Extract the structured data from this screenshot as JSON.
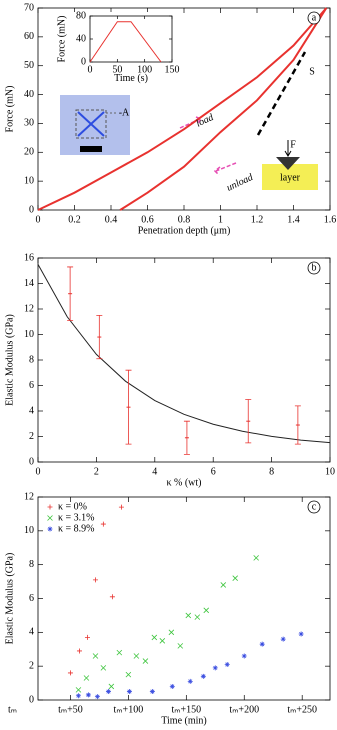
{
  "chart_data": [
    {
      "type": "line",
      "label": "a",
      "xlabel": "Penetration depth (μm)",
      "ylabel": "Force (mN)",
      "xlim": [
        0,
        1.6
      ],
      "xticks": [
        0,
        0.2,
        0.4,
        0.6,
        0.8,
        1,
        1.2,
        1.4,
        1.6
      ],
      "ylim": [
        0,
        70
      ],
      "yticks": [
        0,
        10,
        20,
        30,
        40,
        50,
        60,
        70
      ],
      "series": [
        {
          "color": "#e8322f",
          "x": [
            0,
            0.2,
            0.4,
            0.6,
            0.8,
            1.0,
            1.2,
            1.4,
            1.58
          ],
          "values": [
            0,
            6,
            13,
            20,
            28,
            37,
            46,
            57,
            70
          ]
        },
        {
          "color": "#e8322f",
          "x": [
            1.58,
            1.5,
            1.4,
            1.2,
            1.0,
            0.8,
            0.6,
            0.45
          ],
          "values": [
            70,
            62,
            52,
            38,
            27,
            15,
            6,
            0
          ]
        }
      ],
      "annotations": [
        "load",
        "unload",
        "S",
        "F",
        "layer",
        "-A"
      ],
      "inset": {
        "xlabel": "Time (s)",
        "ylabel": "Force (mN)",
        "xlim": [
          0,
          150
        ],
        "xticks": [
          0,
          50,
          100,
          150
        ],
        "ylim": [
          0,
          80
        ],
        "yticks": [
          0,
          40,
          80
        ],
        "color": "#e8322f",
        "x": [
          0,
          50,
          75,
          130
        ],
        "values": [
          0,
          70,
          70,
          0
        ]
      }
    },
    {
      "type": "errorbar",
      "label": "b",
      "xlabel": "κ % (wt)",
      "ylabel": "Elastic Modulus (GPa)",
      "xlim": [
        0,
        10
      ],
      "xticks": [
        0,
        2,
        4,
        6,
        8,
        10
      ],
      "ylim": [
        0,
        16
      ],
      "yticks": [
        0,
        2,
        4,
        6,
        8,
        10,
        12,
        14,
        16
      ],
      "color": "#e8322f",
      "x": [
        1.1,
        2.1,
        3.1,
        5.1,
        7.2,
        8.9
      ],
      "values": [
        13.2,
        9.8,
        4.3,
        1.9,
        3.2,
        2.9
      ],
      "errors": [
        2.1,
        1.7,
        2.9,
        1.3,
        1.7,
        1.5
      ],
      "fit": {
        "color": "#222222",
        "x": [
          0,
          1,
          2,
          3,
          4,
          5,
          6,
          7,
          8,
          9,
          10
        ],
        "values": [
          15.5,
          11.39,
          8.44,
          6.33,
          4.82,
          3.74,
          2.96,
          2.41,
          2.01,
          1.72,
          1.52
        ]
      }
    },
    {
      "type": "scatter",
      "label": "c",
      "xlabel": "Time (min)",
      "ylabel": "Elastic Modulus (GPa)",
      "legend": "top-left",
      "xlim": [
        22,
        274
      ],
      "xticks": [
        {
          "value": 0,
          "label": "tₘ"
        },
        {
          "value": 50,
          "label": "tₘ+50"
        },
        {
          "value": 100,
          "label": "tₘ+100"
        },
        {
          "value": 150,
          "label": "tₘ+150"
        },
        {
          "value": 200,
          "label": "tₘ+200"
        },
        {
          "value": 250,
          "label": "tₘ+250"
        }
      ],
      "ylim": [
        0,
        12
      ],
      "yticks": [
        0,
        2,
        4,
        6,
        8,
        10,
        12
      ],
      "series": [
        {
          "name": "κ = 0%",
          "color": "#e8322f",
          "marker": "+",
          "x": [
            50,
            57.8,
            64.7,
            71.6,
            78.4,
            86.2,
            94
          ],
          "values": [
            1.6,
            2.9,
            3.7,
            7.1,
            10.4,
            6.1,
            11.4
          ]
        },
        {
          "name": "κ = 3.1%",
          "color": "#3cc43c",
          "marker": "x",
          "x": [
            56.9,
            63.8,
            71.6,
            78.4,
            85.3,
            92.2,
            100,
            106.9,
            114.7,
            122.4,
            129.3,
            137.1,
            144.8,
            151.7,
            159.5,
            167.2,
            181.9,
            192.2,
            210.3
          ],
          "values": [
            0.6,
            1.3,
            2.6,
            1.9,
            0.8,
            2.8,
            1.5,
            2.6,
            2.3,
            3.7,
            3.5,
            4.0,
            3.2,
            5.0,
            4.9,
            5.3,
            6.8,
            7.2,
            8.4
          ]
        },
        {
          "name": "κ = 8.9%",
          "color": "#3a4de0",
          "marker": "*",
          "x": [
            56.9,
            65.5,
            73.3,
            82.8,
            100.9,
            120.7,
            137.9,
            153.4,
            164.7,
            175,
            185.3,
            200,
            215.5,
            233.6,
            249.1
          ],
          "values": [
            0.25,
            0.3,
            0.2,
            0.5,
            0.5,
            0.5,
            0.8,
            1.1,
            1.4,
            1.9,
            2.1,
            2.6,
            3.3,
            3.6,
            3.9
          ]
        }
      ]
    }
  ]
}
